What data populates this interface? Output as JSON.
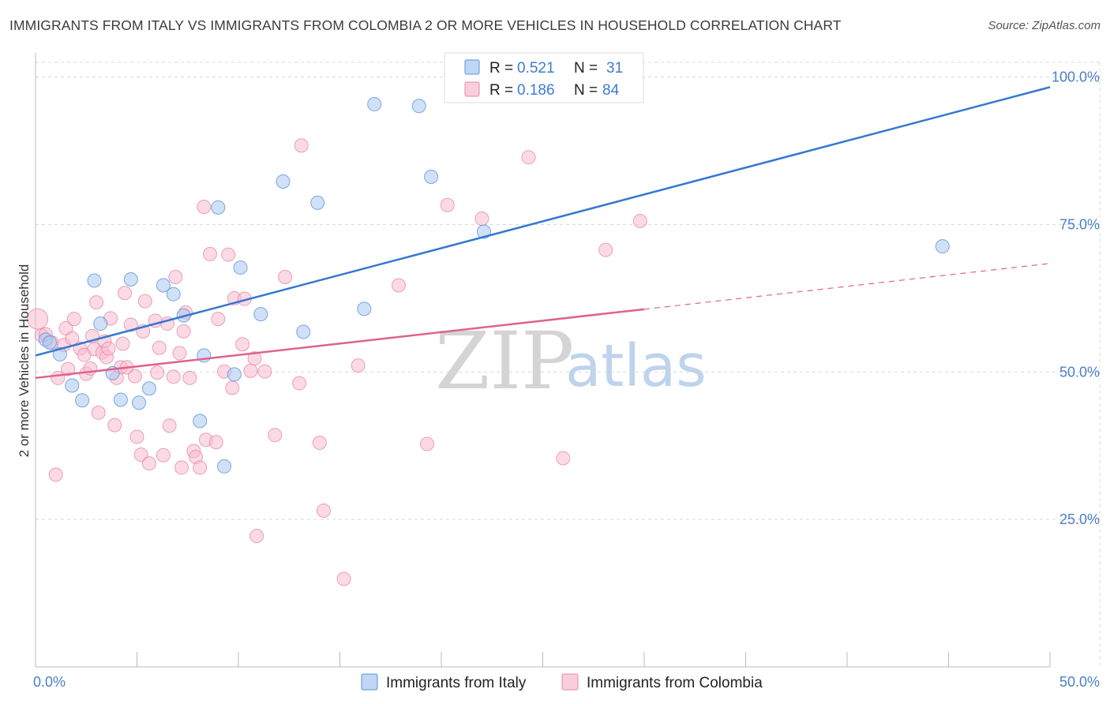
{
  "title": "IMMIGRANTS FROM ITALY VS IMMIGRANTS FROM COLOMBIA 2 OR MORE VEHICLES IN HOUSEHOLD CORRELATION CHART",
  "source": "Source: ZipAtlas.com",
  "watermark": {
    "zip": "ZIP",
    "atlas": "atlas"
  },
  "colors": {
    "italy_fill": "#a9c8f0",
    "italy_stroke": "#5c93d8",
    "italy_line": "#3477d1",
    "colombia_fill": "#f7bcd0",
    "colombia_stroke": "#e889a8",
    "colombia_line": "#e0628d",
    "grid": "#d9d9d9",
    "tick_label": "#4a7fc8"
  },
  "legend": {
    "italy": {
      "r_label": "R = ",
      "r_value": "0.521",
      "n_label": "N = ",
      "n_value": "31"
    },
    "colombia": {
      "r_label": "R = ",
      "r_value": "0.186",
      "n_label": "N = ",
      "n_value": "84"
    }
  },
  "chart_data": {
    "type": "scatter",
    "title": "IMMIGRANTS FROM ITALY VS IMMIGRANTS FROM COLOMBIA 2 OR MORE VEHICLES IN HOUSEHOLD CORRELATION CHART",
    "xlabel": "",
    "ylabel": "2 or more Vehicles in Household",
    "xlim": [
      0,
      50
    ],
    "ylim": [
      0,
      102.5
    ],
    "x_tick_labels": [
      "0.0%",
      "50.0%"
    ],
    "y_ticks": [
      25,
      50,
      75,
      100
    ],
    "y_tick_labels": [
      "25.0%",
      "50.0%",
      "75.0%",
      "100.0%"
    ],
    "grid": true,
    "legend_position": "top-center",
    "series": [
      {
        "name": "Immigrants from Italy",
        "R": 0.521,
        "N": 31,
        "trend": {
          "x0": 0,
          "y0": 52.8,
          "x1": 50,
          "y1": 98.3,
          "solid_until": 50
        },
        "points": [
          [
            0.5,
            55.5
          ],
          [
            0.7,
            55.0
          ],
          [
            1.2,
            53.0
          ],
          [
            1.8,
            47.7
          ],
          [
            2.3,
            45.2
          ],
          [
            2.9,
            65.5
          ],
          [
            3.2,
            58.2
          ],
          [
            3.8,
            49.8
          ],
          [
            4.2,
            45.3
          ],
          [
            4.7,
            65.7
          ],
          [
            5.1,
            44.8
          ],
          [
            5.6,
            47.2
          ],
          [
            6.3,
            64.7
          ],
          [
            6.8,
            63.2
          ],
          [
            7.3,
            59.6
          ],
          [
            8.1,
            41.7
          ],
          [
            8.3,
            52.8
          ],
          [
            9.0,
            77.9
          ],
          [
            9.3,
            34.0
          ],
          [
            9.8,
            49.6
          ],
          [
            10.1,
            67.7
          ],
          [
            11.1,
            59.8
          ],
          [
            12.2,
            82.3
          ],
          [
            13.2,
            56.8
          ],
          [
            13.9,
            78.7
          ],
          [
            16.2,
            60.7
          ],
          [
            16.7,
            95.4
          ],
          [
            18.9,
            95.1
          ],
          [
            19.5,
            83.1
          ],
          [
            22.1,
            73.8
          ],
          [
            44.7,
            71.3
          ]
        ]
      },
      {
        "name": "Immigrants from Colombia",
        "R": 0.186,
        "N": 84,
        "trend": {
          "x0": 0,
          "y0": 49.0,
          "x1": 50,
          "y1": 68.4,
          "solid_until": 30
        },
        "points": [
          [
            0.1,
            59.0
          ],
          [
            0.3,
            56.2
          ],
          [
            0.5,
            56.4
          ],
          [
            0.8,
            55.0
          ],
          [
            1.0,
            32.6
          ],
          [
            1.1,
            49.0
          ],
          [
            1.4,
            54.6
          ],
          [
            1.5,
            57.4
          ],
          [
            1.6,
            50.5
          ],
          [
            1.8,
            55.7
          ],
          [
            1.9,
            59.0
          ],
          [
            2.2,
            54.0
          ],
          [
            2.4,
            52.9
          ],
          [
            2.5,
            49.7
          ],
          [
            2.7,
            50.6
          ],
          [
            2.9,
            53.9
          ],
          [
            3.0,
            61.8
          ],
          [
            3.1,
            43.1
          ],
          [
            3.3,
            53.3
          ],
          [
            3.4,
            55.2
          ],
          [
            3.5,
            52.5
          ],
          [
            3.6,
            54.0
          ],
          [
            3.9,
            41.0
          ],
          [
            4.0,
            49.0
          ],
          [
            4.2,
            50.8
          ],
          [
            4.3,
            54.8
          ],
          [
            4.4,
            63.4
          ],
          [
            4.5,
            50.8
          ],
          [
            4.7,
            58.0
          ],
          [
            4.9,
            49.3
          ],
          [
            5.0,
            39.0
          ],
          [
            5.2,
            36.0
          ],
          [
            5.3,
            56.9
          ],
          [
            5.4,
            62.0
          ],
          [
            5.6,
            34.5
          ],
          [
            5.9,
            58.7
          ],
          [
            6.0,
            49.9
          ],
          [
            6.1,
            54.1
          ],
          [
            6.3,
            35.9
          ],
          [
            6.5,
            58.2
          ],
          [
            6.6,
            40.9
          ],
          [
            6.9,
            66.1
          ],
          [
            7.1,
            53.2
          ],
          [
            7.2,
            33.8
          ],
          [
            7.4,
            60.1
          ],
          [
            7.6,
            49.0
          ],
          [
            7.8,
            36.6
          ],
          [
            7.9,
            35.6
          ],
          [
            8.1,
            33.8
          ],
          [
            8.3,
            78.0
          ],
          [
            8.4,
            38.5
          ],
          [
            8.6,
            70.0
          ],
          [
            8.9,
            38.1
          ],
          [
            9.0,
            59.0
          ],
          [
            9.3,
            50.1
          ],
          [
            9.5,
            69.9
          ],
          [
            9.7,
            47.3
          ],
          [
            9.8,
            62.5
          ],
          [
            10.2,
            54.7
          ],
          [
            10.3,
            62.4
          ],
          [
            10.6,
            50.2
          ],
          [
            10.8,
            52.3
          ],
          [
            10.9,
            22.2
          ],
          [
            11.3,
            50.1
          ],
          [
            11.8,
            39.3
          ],
          [
            12.3,
            66.1
          ],
          [
            13.0,
            48.1
          ],
          [
            13.1,
            88.4
          ],
          [
            14.0,
            38.0
          ],
          [
            14.2,
            26.5
          ],
          [
            15.2,
            14.9
          ],
          [
            15.9,
            51.1
          ],
          [
            17.9,
            64.7
          ],
          [
            19.3,
            37.8
          ],
          [
            20.3,
            78.3
          ],
          [
            22.0,
            76.0
          ],
          [
            24.3,
            86.4
          ],
          [
            26.0,
            35.4
          ],
          [
            28.1,
            70.7
          ],
          [
            29.8,
            75.6
          ],
          [
            2.8,
            56.1
          ],
          [
            3.7,
            59.1
          ],
          [
            6.8,
            49.2
          ],
          [
            7.3,
            56.9
          ]
        ]
      }
    ]
  },
  "bottom_legend": {
    "italy_label": "Immigrants from Italy",
    "colombia_label": "Immigrants from Colombia"
  }
}
